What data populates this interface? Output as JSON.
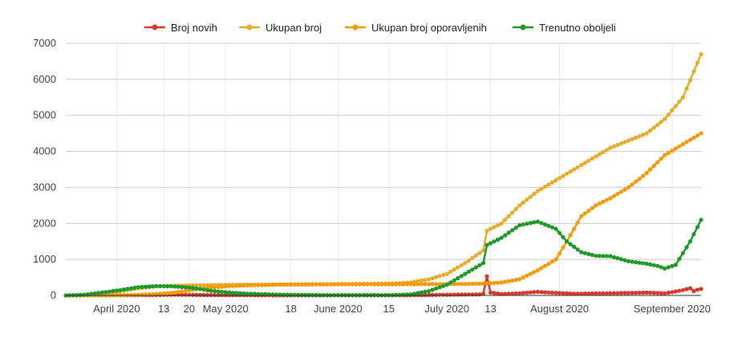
{
  "chart_data": {
    "type": "line",
    "legend_position": "top-center",
    "x_tick_labels": [
      "April 2020",
      "13",
      "20",
      "May 2020",
      "18",
      "June 2020",
      "15",
      "July 2020",
      "13",
      "August 2020",
      "September 2020"
    ],
    "y_tick_labels": [
      "0",
      "1000",
      "2000",
      "3000",
      "4000",
      "5000",
      "6000",
      "7000"
    ],
    "ylim": [
      0,
      7000
    ],
    "xlim": [
      0,
      175
    ],
    "x_ticks": [
      14,
      27,
      34,
      44,
      62,
      75,
      89,
      105,
      117,
      136,
      167
    ],
    "grid": true,
    "series": [
      {
        "name": "Broj novih",
        "color": "#db3a2b",
        "points": [
          [
            0,
            0
          ],
          [
            20,
            5
          ],
          [
            30,
            20
          ],
          [
            40,
            10
          ],
          [
            60,
            2
          ],
          [
            80,
            2
          ],
          [
            95,
            5
          ],
          [
            105,
            20
          ],
          [
            114,
            30
          ],
          [
            115,
            50
          ],
          [
            116,
            530
          ],
          [
            117,
            80
          ],
          [
            120,
            40
          ],
          [
            125,
            60
          ],
          [
            130,
            100
          ],
          [
            135,
            70
          ],
          [
            140,
            50
          ],
          [
            150,
            60
          ],
          [
            160,
            80
          ],
          [
            165,
            60
          ],
          [
            168,
            110
          ],
          [
            170,
            150
          ],
          [
            172,
            200
          ],
          [
            173,
            120
          ],
          [
            174,
            160
          ],
          [
            175,
            180
          ]
        ]
      },
      {
        "name": "Ukupan broj",
        "color": "#e8ac2b",
        "points": [
          [
            0,
            0
          ],
          [
            5,
            10
          ],
          [
            10,
            30
          ],
          [
            15,
            120
          ],
          [
            20,
            200
          ],
          [
            25,
            250
          ],
          [
            30,
            270
          ],
          [
            35,
            280
          ],
          [
            40,
            290
          ],
          [
            50,
            300
          ],
          [
            60,
            310
          ],
          [
            70,
            315
          ],
          [
            80,
            320
          ],
          [
            90,
            330
          ],
          [
            95,
            360
          ],
          [
            100,
            450
          ],
          [
            105,
            600
          ],
          [
            110,
            900
          ],
          [
            115,
            1250
          ],
          [
            116,
            1800
          ],
          [
            120,
            2000
          ],
          [
            125,
            2500
          ],
          [
            130,
            2900
          ],
          [
            135,
            3200
          ],
          [
            140,
            3500
          ],
          [
            145,
            3800
          ],
          [
            150,
            4100
          ],
          [
            155,
            4300
          ],
          [
            160,
            4500
          ],
          [
            165,
            4900
          ],
          [
            170,
            5500
          ],
          [
            175,
            6700
          ]
        ]
      },
      {
        "name": "Ukupan broj oporavljenih",
        "color": "#f59a0a",
        "points": [
          [
            0,
            0
          ],
          [
            10,
            5
          ],
          [
            20,
            15
          ],
          [
            25,
            40
          ],
          [
            30,
            80
          ],
          [
            35,
            160
          ],
          [
            40,
            220
          ],
          [
            45,
            260
          ],
          [
            50,
            280
          ],
          [
            60,
            300
          ],
          [
            70,
            305
          ],
          [
            80,
            310
          ],
          [
            90,
            310
          ],
          [
            100,
            315
          ],
          [
            110,
            320
          ],
          [
            115,
            330
          ],
          [
            120,
            360
          ],
          [
            125,
            450
          ],
          [
            130,
            700
          ],
          [
            135,
            1000
          ],
          [
            138,
            1500
          ],
          [
            142,
            2200
          ],
          [
            146,
            2500
          ],
          [
            150,
            2700
          ],
          [
            155,
            3000
          ],
          [
            160,
            3400
          ],
          [
            165,
            3900
          ],
          [
            170,
            4200
          ],
          [
            175,
            4500
          ]
        ]
      },
      {
        "name": "Trenutno oboljeli",
        "color": "#1d9a27",
        "points": [
          [
            0,
            0
          ],
          [
            5,
            20
          ],
          [
            10,
            80
          ],
          [
            15,
            150
          ],
          [
            20,
            230
          ],
          [
            25,
            260
          ],
          [
            30,
            250
          ],
          [
            35,
            210
          ],
          [
            40,
            130
          ],
          [
            45,
            80
          ],
          [
            50,
            50
          ],
          [
            60,
            20
          ],
          [
            70,
            10
          ],
          [
            80,
            8
          ],
          [
            90,
            10
          ],
          [
            95,
            30
          ],
          [
            100,
            120
          ],
          [
            105,
            300
          ],
          [
            110,
            600
          ],
          [
            115,
            900
          ],
          [
            116,
            1400
          ],
          [
            120,
            1600
          ],
          [
            125,
            1950
          ],
          [
            130,
            2050
          ],
          [
            135,
            1850
          ],
          [
            138,
            1500
          ],
          [
            142,
            1200
          ],
          [
            146,
            1100
          ],
          [
            150,
            1090
          ],
          [
            155,
            950
          ],
          [
            160,
            880
          ],
          [
            163,
            820
          ],
          [
            165,
            750
          ],
          [
            168,
            850
          ],
          [
            172,
            1500
          ],
          [
            175,
            2100
          ]
        ]
      }
    ]
  }
}
